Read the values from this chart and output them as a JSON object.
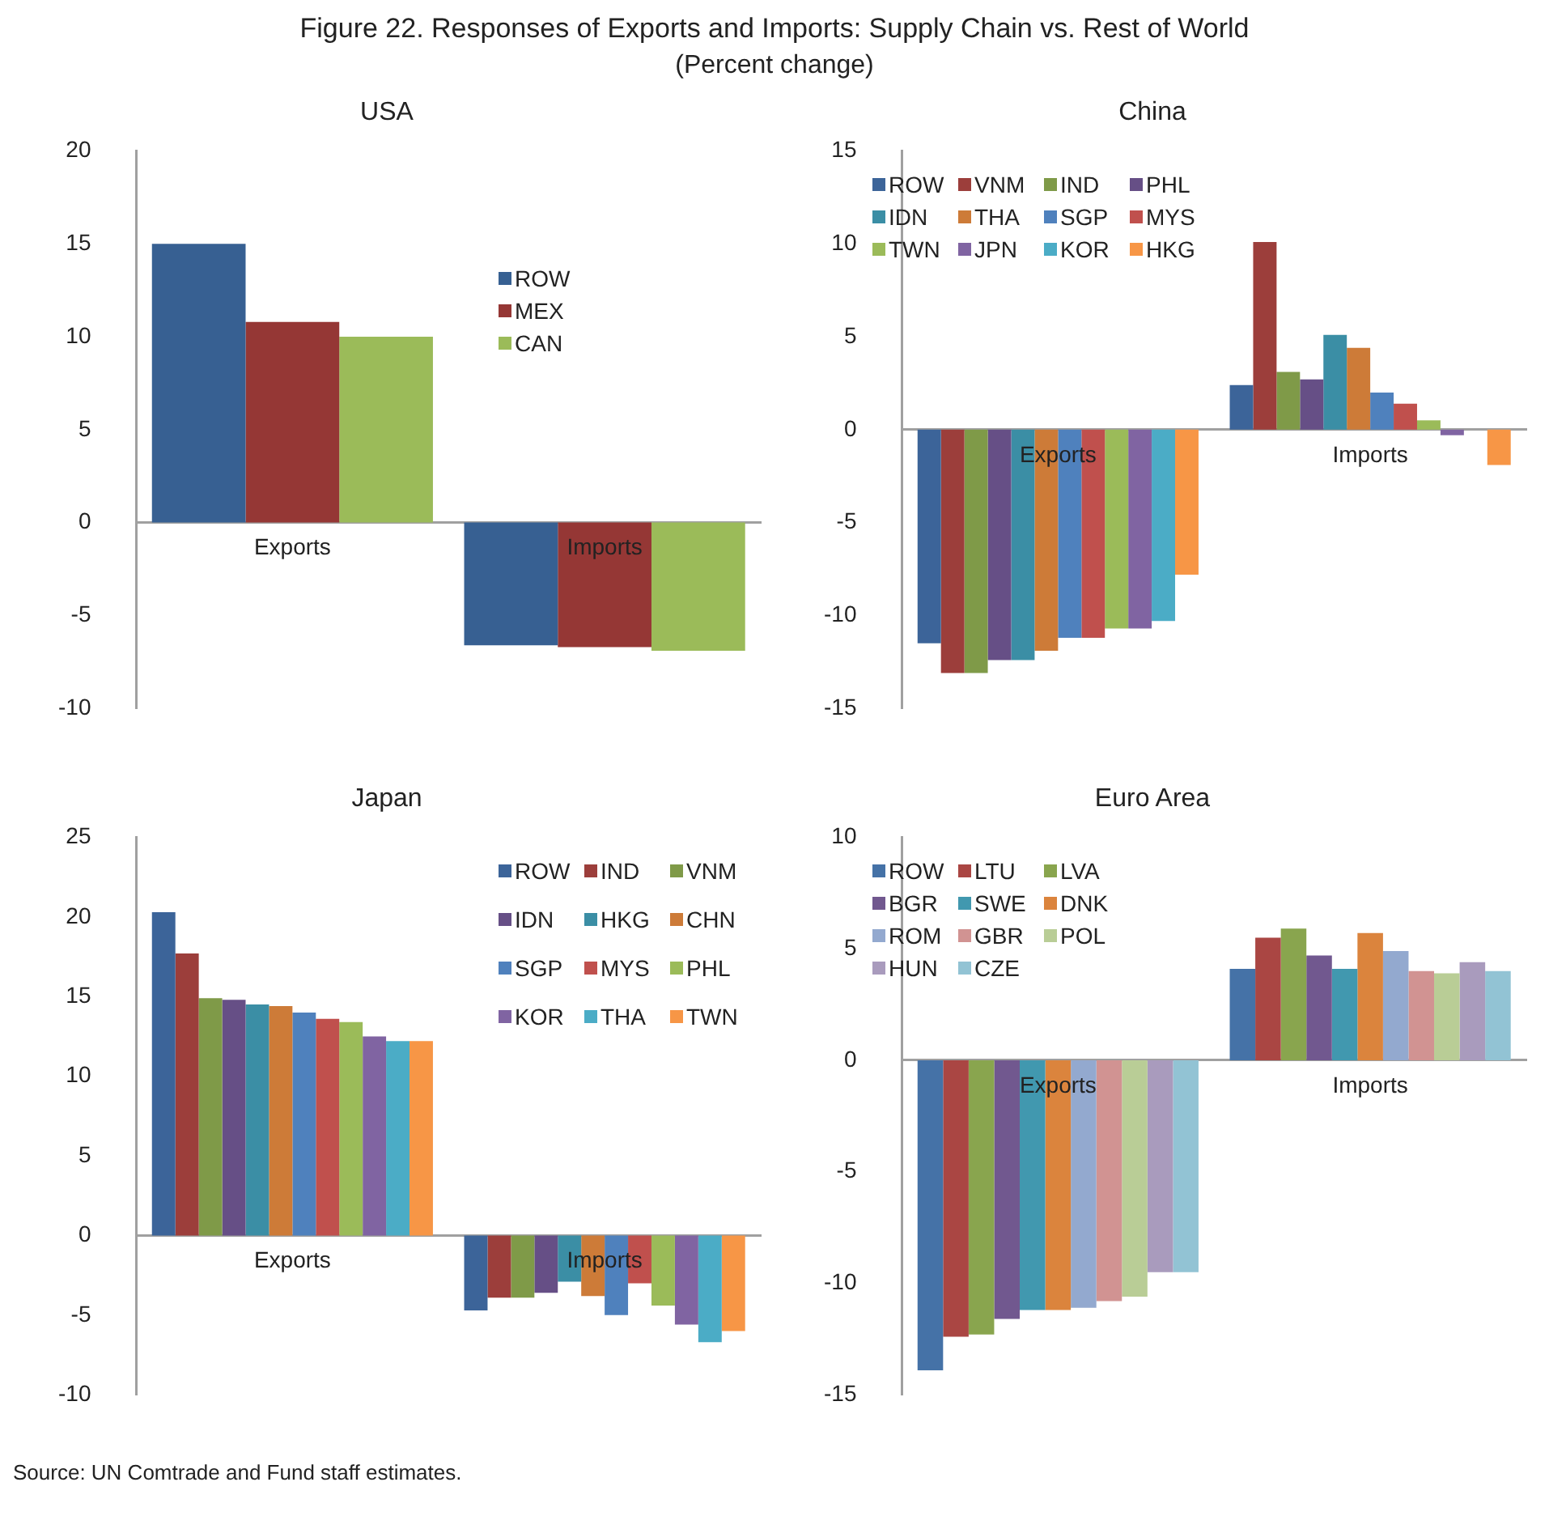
{
  "chart_data": [
    {
      "type": "other",
      "title": "Figure 22. Responses of Exports and Imports: Supply Chain vs. Rest of World",
      "subtitle": "(Percent change)"
    },
    {
      "type": "bar",
      "title": "USA",
      "categories": [
        "Exports",
        "Imports"
      ],
      "ylim": [
        -10,
        20
      ],
      "yticks": [
        -10,
        -5,
        0,
        5,
        10,
        15,
        20
      ],
      "grid": false,
      "legend": "right",
      "series": [
        {
          "name": "ROW",
          "color": "#376092",
          "values": [
            15.0,
            -6.6
          ]
        },
        {
          "name": "MEX",
          "color": "#953735",
          "values": [
            10.8,
            -6.7
          ]
        },
        {
          "name": "CAN",
          "color": "#9bbb59",
          "values": [
            10.0,
            -6.9
          ]
        }
      ]
    },
    {
      "type": "bar",
      "title": "China",
      "categories": [
        "Exports",
        "Imports"
      ],
      "ylim": [
        -15,
        15
      ],
      "yticks": [
        -15,
        -10,
        -5,
        0,
        5,
        10,
        15
      ],
      "grid": false,
      "legend": "top left",
      "series": [
        {
          "name": "ROW",
          "color": "#3c6499",
          "values": [
            -11.5,
            2.4
          ]
        },
        {
          "name": "VNM",
          "color": "#9c3e3b",
          "values": [
            -13.1,
            10.1
          ]
        },
        {
          "name": "IND",
          "color": "#7f9a48",
          "values": [
            -13.1,
            3.1
          ]
        },
        {
          "name": "PHL",
          "color": "#664f86",
          "values": [
            -12.4,
            2.7
          ]
        },
        {
          "name": "IDN",
          "color": "#3b8ea5",
          "values": [
            -12.4,
            5.1
          ]
        },
        {
          "name": "THA",
          "color": "#cd7b38",
          "values": [
            -11.9,
            4.4
          ]
        },
        {
          "name": "SGP",
          "color": "#4f81bd",
          "values": [
            -11.2,
            2.0
          ]
        },
        {
          "name": "MYS",
          "color": "#c0504d",
          "values": [
            -11.2,
            1.4
          ]
        },
        {
          "name": "TWN",
          "color": "#9bbb59",
          "values": [
            -10.7,
            0.5
          ]
        },
        {
          "name": "JPN",
          "color": "#8064a2",
          "values": [
            -10.7,
            -0.3
          ]
        },
        {
          "name": "KOR",
          "color": "#4bacc6",
          "values": [
            -10.3,
            null
          ]
        },
        {
          "name": "HKG",
          "color": "#f79646",
          "values": [
            -7.8,
            -1.9
          ]
        }
      ]
    },
    {
      "type": "bar",
      "title": "Japan",
      "categories": [
        "Exports",
        "Imports"
      ],
      "ylim": [
        -10,
        25
      ],
      "yticks": [
        -10,
        -5,
        0,
        5,
        10,
        15,
        20,
        25
      ],
      "grid": false,
      "legend": "top right",
      "series": [
        {
          "name": "ROW",
          "color": "#3c6499",
          "values": [
            20.3,
            -4.7
          ]
        },
        {
          "name": "IND",
          "color": "#9c3e3b",
          "values": [
            17.7,
            -3.9
          ]
        },
        {
          "name": "VNM",
          "color": "#7f9a48",
          "values": [
            14.9,
            -3.9
          ]
        },
        {
          "name": "IDN",
          "color": "#664f86",
          "values": [
            14.8,
            -3.6
          ]
        },
        {
          "name": "HKG",
          "color": "#3b8ea5",
          "values": [
            14.5,
            -2.9
          ]
        },
        {
          "name": "CHN",
          "color": "#cd7b38",
          "values": [
            14.4,
            -3.8
          ]
        },
        {
          "name": "SGP",
          "color": "#4f81bd",
          "values": [
            14.0,
            -5.0
          ]
        },
        {
          "name": "MYS",
          "color": "#c0504d",
          "values": [
            13.6,
            -3.0
          ]
        },
        {
          "name": "PHL",
          "color": "#9bbb59",
          "values": [
            13.4,
            -4.4
          ]
        },
        {
          "name": "KOR",
          "color": "#8064a2",
          "values": [
            12.5,
            -5.6
          ]
        },
        {
          "name": "THA",
          "color": "#4bacc6",
          "values": [
            12.2,
            -6.7
          ]
        },
        {
          "name": "TWN",
          "color": "#f79646",
          "values": [
            12.2,
            -6.0
          ]
        }
      ]
    },
    {
      "type": "bar",
      "title": "Euro Area",
      "categories": [
        "Exports",
        "Imports"
      ],
      "ylim": [
        -15,
        10
      ],
      "yticks": [
        -15,
        -10,
        -5,
        0,
        5,
        10
      ],
      "grid": false,
      "legend": "top left",
      "series": [
        {
          "name": "ROW",
          "color": "#4572a7",
          "values": [
            -13.9,
            4.1
          ]
        },
        {
          "name": "LTU",
          "color": "#aa4643",
          "values": [
            -12.4,
            5.5
          ]
        },
        {
          "name": "LVA",
          "color": "#89a54e",
          "values": [
            -12.3,
            5.9
          ]
        },
        {
          "name": "BGR",
          "color": "#71588f",
          "values": [
            -11.6,
            4.7
          ]
        },
        {
          "name": "SWE",
          "color": "#4198af",
          "values": [
            -11.2,
            4.1
          ]
        },
        {
          "name": "DNK",
          "color": "#db843d",
          "values": [
            -11.2,
            5.7
          ]
        },
        {
          "name": "ROM",
          "color": "#93a9cf",
          "values": [
            -11.1,
            4.9
          ]
        },
        {
          "name": "GBR",
          "color": "#d19392",
          "values": [
            -10.8,
            4.0
          ]
        },
        {
          "name": "POL",
          "color": "#b9cd96",
          "values": [
            -10.6,
            3.9
          ]
        },
        {
          "name": "HUN",
          "color": "#a99bbd",
          "values": [
            -9.5,
            4.4
          ]
        },
        {
          "name": "CZE",
          "color": "#92c3d4",
          "values": [
            -9.5,
            4.0
          ]
        }
      ]
    },
    {
      "type": "other",
      "annotations": [
        "Source: UN Comtrade and Fund staff estimates."
      ]
    }
  ]
}
